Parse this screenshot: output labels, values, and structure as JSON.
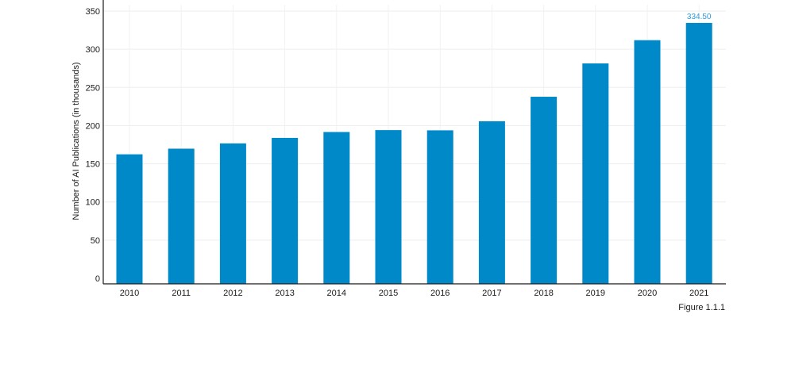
{
  "chart_data": {
    "type": "bar",
    "categories": [
      "2010",
      "2011",
      "2012",
      "2013",
      "2014",
      "2015",
      "2016",
      "2017",
      "2018",
      "2019",
      "2020",
      "2021"
    ],
    "values": [
      162.4,
      169.8,
      176.7,
      183.9,
      191.6,
      194.1,
      193.8,
      205.7,
      237.8,
      281.5,
      311.9,
      334.5
    ],
    "title": "",
    "xlabel": "",
    "ylabel": "Number of AI Publications (in thousands)",
    "ylim": [
      0,
      350
    ],
    "yticks": [
      "0",
      "50",
      "100",
      "150",
      "200",
      "250",
      "300",
      "350"
    ],
    "data_labels": [
      {
        "category": "2021",
        "text": "334.50"
      }
    ],
    "grid": true,
    "bar_color": "#0089C9",
    "label_color": "#2D9CDB"
  },
  "caption": "Figure 1.1.1"
}
